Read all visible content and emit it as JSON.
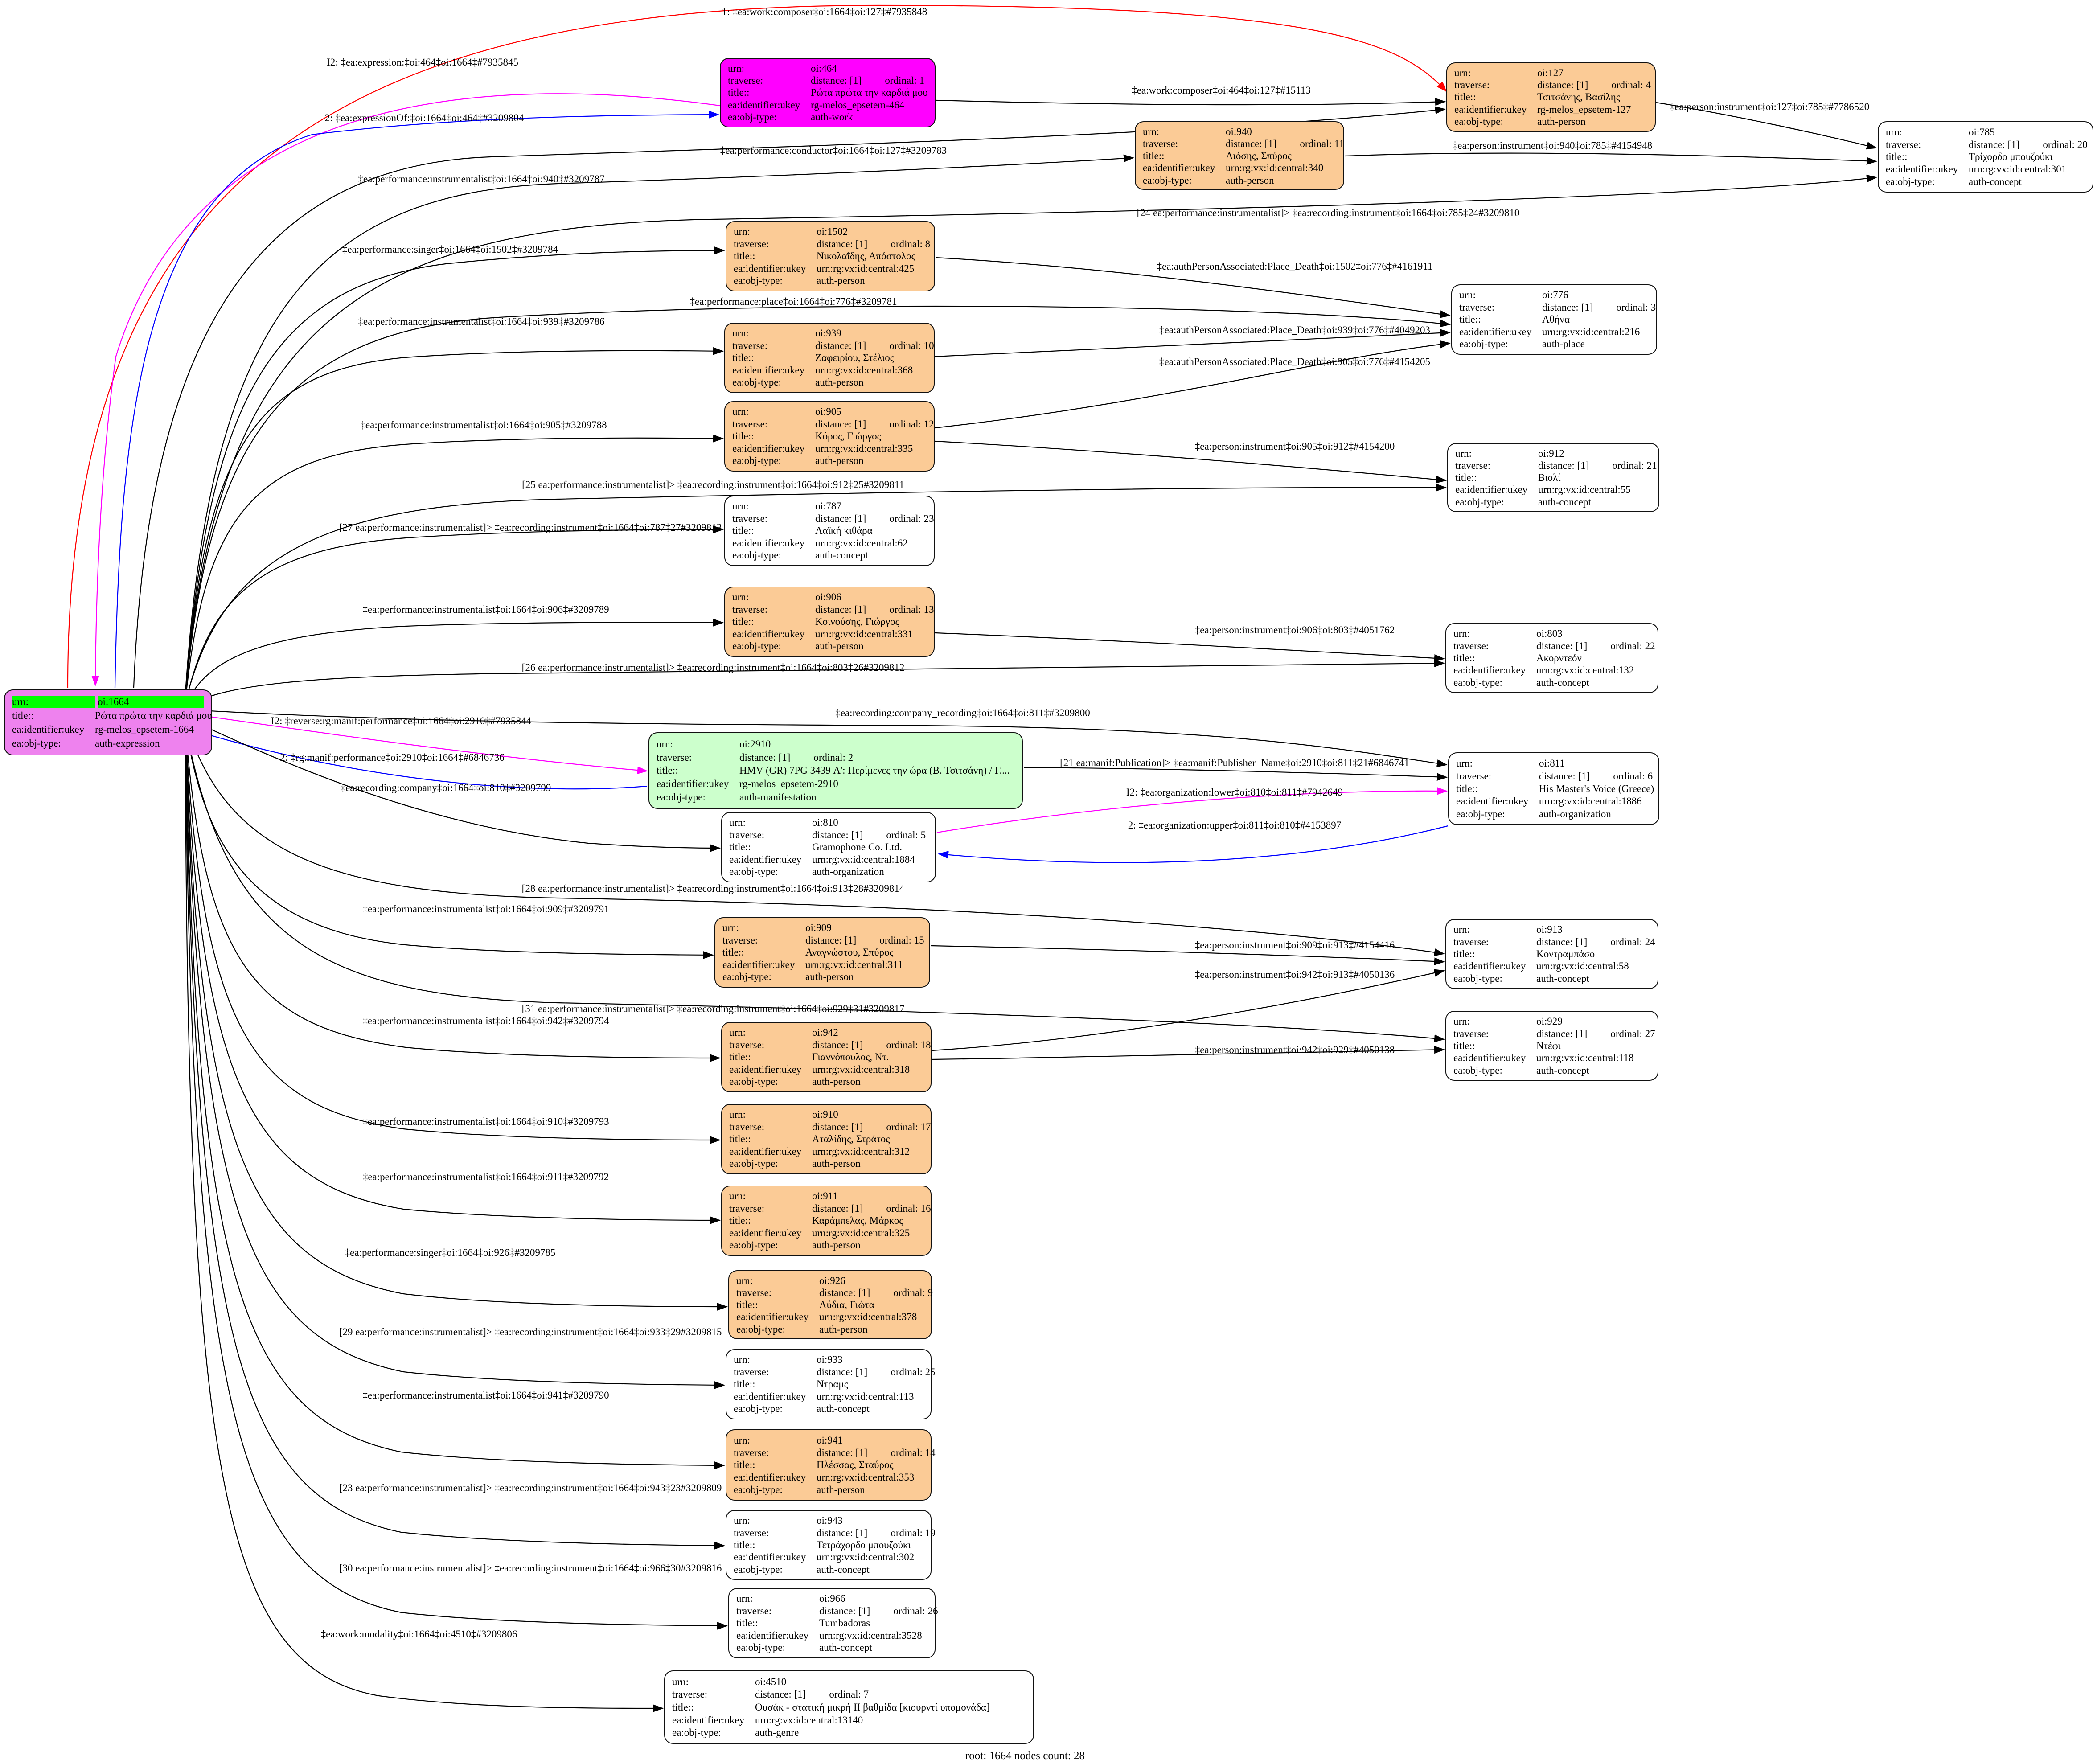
{
  "caption": "root: 1664 nodes count: 28",
  "field_labels": {
    "urn": "urn:",
    "traverse": "traverse:",
    "distance": "distance:",
    "ordinal": "ordinal:",
    "title": "title::",
    "ukey": "ea:identifier:ukey",
    "objtype": "ea:obj-type:"
  },
  "colors": {
    "person_node": "#fbcb96",
    "work_node": "#ff00ff",
    "manifestation_node": "#ccffcc",
    "root_node": "#ee82ee",
    "root_urn_highlight": "#00ff00",
    "edge_black": "#000000",
    "edge_red": "#ff0000",
    "edge_blue": "#0000ff",
    "edge_magenta": "#ff00ff"
  },
  "nodes": [
    {
      "key": "1664",
      "fill": "root",
      "urn": "oi:1664",
      "title": "Ρώτα πρώτα την καρδιά μου",
      "ukey": "rg-melos_epsetem-1664",
      "objtype": "auth-expression"
    },
    {
      "key": "464",
      "fill": "magenta",
      "urn": "oi:464",
      "distance": "[1]",
      "ordinal": "1",
      "title": "Ρώτα πρώτα την καρδιά μου",
      "ukey": "rg-melos_epsetem-464",
      "objtype": "auth-work"
    },
    {
      "key": "127",
      "fill": "orange",
      "urn": "oi:127",
      "distance": "[1]",
      "ordinal": "4",
      "title": "Τσιτσάνης, Βασίλης",
      "ukey": "rg-melos_epsetem-127",
      "objtype": "auth-person"
    },
    {
      "key": "785",
      "fill": "white",
      "urn": "oi:785",
      "distance": "[1]",
      "ordinal": "20",
      "title": "Τρίχορδο μπουζούκι",
      "ukey": "urn:rg:vx:id:central:301",
      "objtype": "auth-concept"
    },
    {
      "key": "940",
      "fill": "orange",
      "urn": "oi:940",
      "distance": "[1]",
      "ordinal": "11",
      "title": "Λιόσης, Σπύρος",
      "ukey": "urn:rg:vx:id:central:340",
      "objtype": "auth-person"
    },
    {
      "key": "1502",
      "fill": "orange",
      "urn": "oi:1502",
      "distance": "[1]",
      "ordinal": "8",
      "title": "Νικολαΐδης, Απόστολος",
      "ukey": "urn:rg:vx:id:central:425",
      "objtype": "auth-person"
    },
    {
      "key": "776",
      "fill": "white",
      "urn": "oi:776",
      "distance": "[1]",
      "ordinal": "3",
      "title": "Αθήνα",
      "ukey": "urn:rg:vx:id:central:216",
      "objtype": "auth-place"
    },
    {
      "key": "939",
      "fill": "orange",
      "urn": "oi:939",
      "distance": "[1]",
      "ordinal": "10",
      "title": "Ζαφειρίου, Στέλιος",
      "ukey": "urn:rg:vx:id:central:368",
      "objtype": "auth-person"
    },
    {
      "key": "905",
      "fill": "orange",
      "urn": "oi:905",
      "distance": "[1]",
      "ordinal": "12",
      "title": "Κόρος, Γιώργος",
      "ukey": "urn:rg:vx:id:central:335",
      "objtype": "auth-person"
    },
    {
      "key": "912",
      "fill": "white",
      "urn": "oi:912",
      "distance": "[1]",
      "ordinal": "21",
      "title": "Βιολί",
      "ukey": "urn:rg:vx:id:central:55",
      "objtype": "auth-concept"
    },
    {
      "key": "787",
      "fill": "white",
      "urn": "oi:787",
      "distance": "[1]",
      "ordinal": "23",
      "title": "Λαϊκή κιθάρα",
      "ukey": "urn:rg:vx:id:central:62",
      "objtype": "auth-concept"
    },
    {
      "key": "906",
      "fill": "orange",
      "urn": "oi:906",
      "distance": "[1]",
      "ordinal": "13",
      "title": "Κοινούσης, Γιώργος",
      "ukey": "urn:rg:vx:id:central:331",
      "objtype": "auth-person"
    },
    {
      "key": "803",
      "fill": "white",
      "urn": "oi:803",
      "distance": "[1]",
      "ordinal": "22",
      "title": "Ακορντεόν",
      "ukey": "urn:rg:vx:id:central:132",
      "objtype": "auth-concept"
    },
    {
      "key": "2910",
      "fill": "green",
      "urn": "oi:2910",
      "distance": "[1]",
      "ordinal": "2",
      "title": "HMV (GR) 7PG 3439 Α': Περίμενες την ώρα (Β. Τσιτσάνη) / Γ....",
      "ukey": "rg-melos_epsetem-2910",
      "objtype": "auth-manifestation"
    },
    {
      "key": "811",
      "fill": "white",
      "urn": "oi:811",
      "distance": "[1]",
      "ordinal": "6",
      "title": "His Master's Voice (Greece)",
      "ukey": "urn:rg:vx:id:central:1886",
      "objtype": "auth-organization"
    },
    {
      "key": "810",
      "fill": "white",
      "urn": "oi:810",
      "distance": "[1]",
      "ordinal": "5",
      "title": "Gramophone Co. Ltd.",
      "ukey": "urn:rg:vx:id:central:1884",
      "objtype": "auth-organization"
    },
    {
      "key": "909",
      "fill": "orange",
      "urn": "oi:909",
      "distance": "[1]",
      "ordinal": "15",
      "title": "Αναγνώστου, Σπύρος",
      "ukey": "urn:rg:vx:id:central:311",
      "objtype": "auth-person"
    },
    {
      "key": "913",
      "fill": "white",
      "urn": "oi:913",
      "distance": "[1]",
      "ordinal": "24",
      "title": "Κοντραμπάσο",
      "ukey": "urn:rg:vx:id:central:58",
      "objtype": "auth-concept"
    },
    {
      "key": "942",
      "fill": "orange",
      "urn": "oi:942",
      "distance": "[1]",
      "ordinal": "18",
      "title": "Γιαννόπουλος, Ντ.",
      "ukey": "urn:rg:vx:id:central:318",
      "objtype": "auth-person"
    },
    {
      "key": "929",
      "fill": "white",
      "urn": "oi:929",
      "distance": "[1]",
      "ordinal": "27",
      "title": "Ντέφι",
      "ukey": "urn:rg:vx:id:central:118",
      "objtype": "auth-concept"
    },
    {
      "key": "910",
      "fill": "orange",
      "urn": "oi:910",
      "distance": "[1]",
      "ordinal": "17",
      "title": "Αταλίδης, Στράτος",
      "ukey": "urn:rg:vx:id:central:312",
      "objtype": "auth-person"
    },
    {
      "key": "911",
      "fill": "orange",
      "urn": "oi:911",
      "distance": "[1]",
      "ordinal": "16",
      "title": "Καράμπελας, Μάρκος",
      "ukey": "urn:rg:vx:id:central:325",
      "objtype": "auth-person"
    },
    {
      "key": "926",
      "fill": "orange",
      "urn": "oi:926",
      "distance": "[1]",
      "ordinal": "9",
      "title": "Λύδια, Γιώτα",
      "ukey": "urn:rg:vx:id:central:378",
      "objtype": "auth-person"
    },
    {
      "key": "933",
      "fill": "white",
      "urn": "oi:933",
      "distance": "[1]",
      "ordinal": "25",
      "title": "Ντραμς",
      "ukey": "urn:rg:vx:id:central:113",
      "objtype": "auth-concept"
    },
    {
      "key": "941",
      "fill": "orange",
      "urn": "oi:941",
      "distance": "[1]",
      "ordinal": "14",
      "title": "Πλέσσας, Σταύρος",
      "ukey": "urn:rg:vx:id:central:353",
      "objtype": "auth-person"
    },
    {
      "key": "943",
      "fill": "white",
      "urn": "oi:943",
      "distance": "[1]",
      "ordinal": "19",
      "title": "Τετράχορδο μπουζούκι",
      "ukey": "urn:rg:vx:id:central:302",
      "objtype": "auth-concept"
    },
    {
      "key": "966",
      "fill": "white",
      "urn": "oi:966",
      "distance": "[1]",
      "ordinal": "26",
      "title": "Tumbadoras",
      "ukey": "urn:rg:vx:id:central:3528",
      "objtype": "auth-concept"
    },
    {
      "key": "4510",
      "fill": "white",
      "urn": "oi:4510",
      "distance": "[1]",
      "ordinal": "7",
      "title": "Ουσάκ - στατική μικρή ΙΙ βαθμίδα [κιουρντί υπομονάδα]",
      "ukey": "urn:rg:vx:id:central:13140",
      "objtype": "auth-genre"
    }
  ],
  "edges": [
    {
      "label": "1: ‡ea:work:composer‡oi:1664‡oi:127‡#7935848",
      "color": "red"
    },
    {
      "label": "I2: ‡ea:expression:‡oi:464‡oi:1664‡#7935845",
      "color": "magenta"
    },
    {
      "label": "2: ‡ea:expressionOf:‡oi:1664‡oi:464‡#3209804",
      "color": "blue"
    },
    {
      "label": "‡ea:performance:conductor‡oi:1664‡oi:127‡#3209783",
      "color": "black"
    },
    {
      "label": "‡ea:work:composer‡oi:464‡oi:127‡#15113",
      "color": "black"
    },
    {
      "label": "‡ea:person:instrument‡oi:127‡oi:785‡#7786520",
      "color": "black"
    },
    {
      "label": "‡ea:person:instrument‡oi:940‡oi:785‡#4154948",
      "color": "black"
    },
    {
      "label": "[24 ea:performance:instrumentalist]> ‡ea:recording:instrument‡oi:1664‡oi:785‡24#3209810",
      "color": "black"
    },
    {
      "label": "‡ea:performance:instrumentalist‡oi:1664‡oi:940‡#3209787",
      "color": "black"
    },
    {
      "label": "‡ea:performance:singer‡oi:1664‡oi:1502‡#3209784",
      "color": "black"
    },
    {
      "label": "‡ea:authPersonAssociated:Place_Death‡oi:1502‡oi:776‡#4161911",
      "color": "black"
    },
    {
      "label": "‡ea:performance:place‡oi:1664‡oi:776‡#3209781",
      "color": "black"
    },
    {
      "label": "‡ea:performance:instrumentalist‡oi:1664‡oi:939‡#3209786",
      "color": "black"
    },
    {
      "label": "‡ea:authPersonAssociated:Place_Death‡oi:939‡oi:776‡#4049203",
      "color": "black"
    },
    {
      "label": "‡ea:authPersonAssociated:Place_Death‡oi:905‡oi:776‡#4154205",
      "color": "black"
    },
    {
      "label": "‡ea:performance:instrumentalist‡oi:1664‡oi:905‡#3209788",
      "color": "black"
    },
    {
      "label": "‡ea:person:instrument‡oi:905‡oi:912‡#4154200",
      "color": "black"
    },
    {
      "label": "[25 ea:performance:instrumentalist]> ‡ea:recording:instrument‡oi:1664‡oi:912‡25#3209811",
      "color": "black"
    },
    {
      "label": "[27 ea:performance:instrumentalist]> ‡ea:recording:instrument‡oi:1664‡oi:787‡27#3209813",
      "color": "black"
    },
    {
      "label": "‡ea:performance:instrumentalist‡oi:1664‡oi:906‡#3209789",
      "color": "black"
    },
    {
      "label": "‡ea:person:instrument‡oi:906‡oi:803‡#4051762",
      "color": "black"
    },
    {
      "label": "[26 ea:performance:instrumentalist]> ‡ea:recording:instrument‡oi:1664‡oi:803‡26#3209812",
      "color": "black"
    },
    {
      "label": "‡ea:recording:company_recording‡oi:1664‡oi:811‡#3209800",
      "color": "black"
    },
    {
      "label": "I2: ‡reverse:rg:manif:performance‡oi:1664‡oi:2910‡#7935844",
      "color": "magenta"
    },
    {
      "label": "2: ‡rg:manif:performance‡oi:2910‡oi:1664‡#6846736",
      "color": "blue"
    },
    {
      "label": "[21 ea:manif:Publication]> ‡ea:manif:Publisher_Name‡oi:2910‡oi:811‡21#6846741",
      "color": "black"
    },
    {
      "label": "I2: ‡ea:organization:lower‡oi:810‡oi:811‡#7942649",
      "color": "magenta"
    },
    {
      "label": "‡ea:recording:company‡oi:1664‡oi:810‡#3209799",
      "color": "black"
    },
    {
      "label": "2: ‡ea:organization:upper‡oi:811‡oi:810‡#4153897",
      "color": "blue"
    },
    {
      "label": "[28 ea:performance:instrumentalist]> ‡ea:recording:instrument‡oi:1664‡oi:913‡28#3209814",
      "color": "black"
    },
    {
      "label": "‡ea:performance:instrumentalist‡oi:1664‡oi:909‡#3209791",
      "color": "black"
    },
    {
      "label": "‡ea:person:instrument‡oi:909‡oi:913‡#4154416",
      "color": "black"
    },
    {
      "label": "‡ea:person:instrument‡oi:942‡oi:913‡#4050136",
      "color": "black"
    },
    {
      "label": "[31 ea:performance:instrumentalist]> ‡ea:recording:instrument‡oi:1664‡oi:929‡31#3209817",
      "color": "black"
    },
    {
      "label": "‡ea:performance:instrumentalist‡oi:1664‡oi:942‡#3209794",
      "color": "black"
    },
    {
      "label": "‡ea:person:instrument‡oi:942‡oi:929‡#4050138",
      "color": "black"
    },
    {
      "label": "‡ea:performance:instrumentalist‡oi:1664‡oi:910‡#3209793",
      "color": "black"
    },
    {
      "label": "‡ea:performance:instrumentalist‡oi:1664‡oi:911‡#3209792",
      "color": "black"
    },
    {
      "label": "‡ea:performance:singer‡oi:1664‡oi:926‡#3209785",
      "color": "black"
    },
    {
      "label": "[29 ea:performance:instrumentalist]> ‡ea:recording:instrument‡oi:1664‡oi:933‡29#3209815",
      "color": "black"
    },
    {
      "label": "‡ea:performance:instrumentalist‡oi:1664‡oi:941‡#3209790",
      "color": "black"
    },
    {
      "label": "[23 ea:performance:instrumentalist]> ‡ea:recording:instrument‡oi:1664‡oi:943‡23#3209809",
      "color": "black"
    },
    {
      "label": "[30 ea:performance:instrumentalist]> ‡ea:recording:instrument‡oi:1664‡oi:966‡30#3209816",
      "color": "black"
    },
    {
      "label": "‡ea:work:modality‡oi:1664‡oi:4510‡#3209806",
      "color": "black"
    }
  ]
}
